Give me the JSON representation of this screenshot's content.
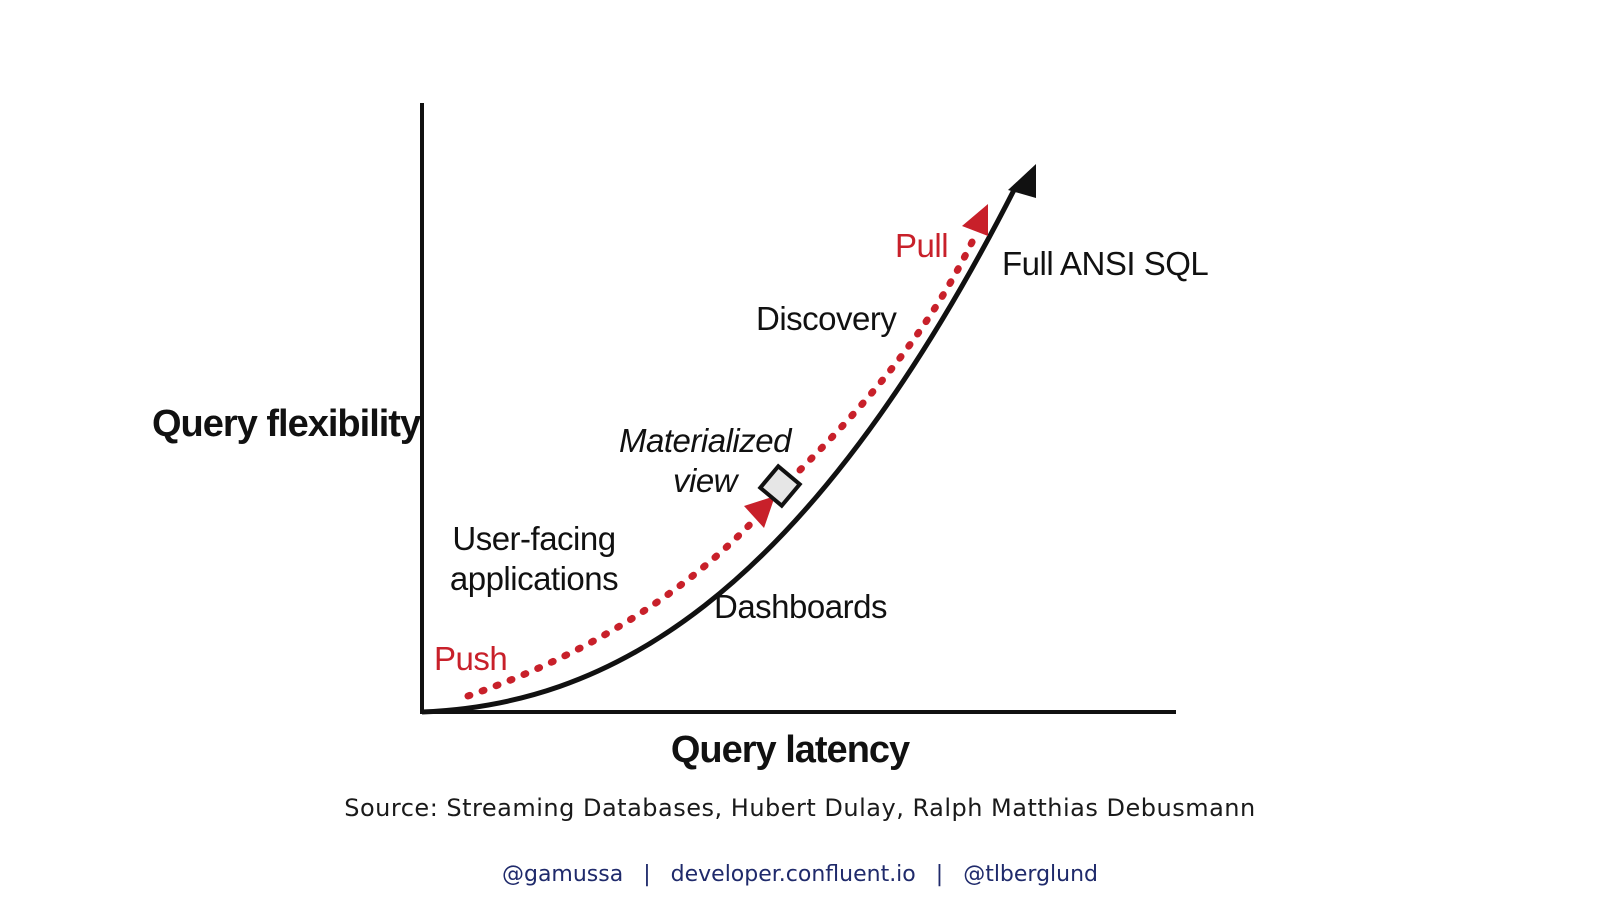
{
  "diagram": {
    "y_axis_title": "Query flexibility",
    "x_axis_title": "Query latency",
    "curve_end_label": "Full ANSI SQL",
    "dashed_start_label": "Push",
    "dashed_end_label": "Pull",
    "labels": {
      "discovery": "Discovery",
      "materialized_line1": "Materialized",
      "materialized_line2": "view",
      "user_facing_line1": "User-facing",
      "user_facing_line2": "applications",
      "dashboards": "Dashboards"
    },
    "colors": {
      "curve": "#111111",
      "dashed_arrow": "#c8202a",
      "marker_fill": "#e6e6e6"
    }
  },
  "source": "Source: Streaming Databases, Hubert Dulay, Ralph Matthias Debusmann",
  "footer": {
    "handle1": "@gamussa",
    "separator": "|",
    "site": "developer.confluent.io",
    "handle2": "@tlberglund"
  }
}
